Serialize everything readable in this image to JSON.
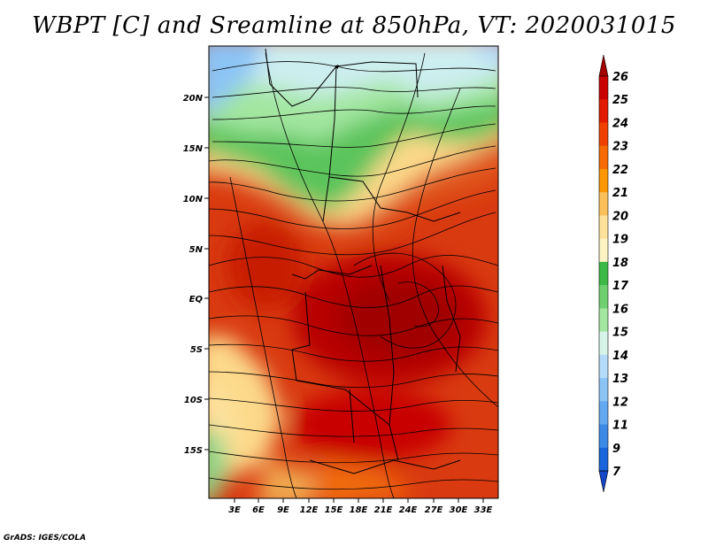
{
  "title": "WBPT [C] and Sreamline at 850hPa, VT: 2020031015",
  "credit": "GrADS: IGES/COLA",
  "map": {
    "y_axis_labels": [
      "20N",
      "15N",
      "10N",
      "5N",
      "EQ",
      "5S",
      "10S",
      "15S"
    ],
    "x_axis_labels": [
      "3E",
      "6E",
      "9E",
      "12E",
      "15E",
      "18E",
      "21E",
      "24E",
      "27E",
      "30E",
      "33E"
    ]
  },
  "colorbar": {
    "levels": [
      "26",
      "25",
      "24",
      "23",
      "22",
      "21",
      "20",
      "19",
      "18",
      "17",
      "16",
      "15",
      "14",
      "13",
      "12",
      "11",
      "9",
      "7"
    ],
    "colors": [
      "#a50000",
      "#c80000",
      "#e11a00",
      "#f04000",
      "#f66a00",
      "#fa9600",
      "#fcc05a",
      "#fde29c",
      "#fdf3c4",
      "#3cb846",
      "#6fd070",
      "#a3e6a0",
      "#d6f5e8",
      "#b4dcfa",
      "#8cc4f5",
      "#64a8ef",
      "#3c8ae6",
      "#1a64dc",
      "#1446c8"
    ]
  }
}
